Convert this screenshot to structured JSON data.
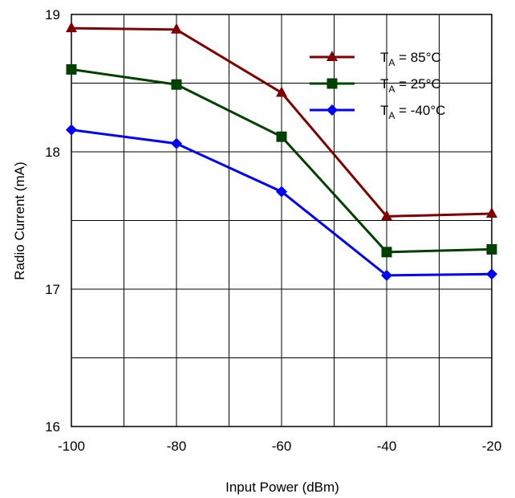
{
  "chart_data": {
    "type": "line",
    "title": "",
    "xlabel": "Input Power (dBm)",
    "ylabel": "Radio Current (mA)",
    "x": [
      -100,
      -80,
      -60,
      -40,
      -20
    ],
    "xlim": [
      -100,
      -20
    ],
    "ylim": [
      16,
      19
    ],
    "x_ticks": [
      "-100",
      "-80",
      "-60",
      "-40",
      "-20"
    ],
    "y_ticks": [
      "16",
      "17",
      "18",
      "19"
    ],
    "grid": true,
    "legend_position": "top-right",
    "series": [
      {
        "name_base": "T",
        "name_sub": "A",
        "name_rest": " = 85°C",
        "color": "#800000",
        "marker": "triangle",
        "values": [
          18.9,
          18.89,
          18.43,
          17.53,
          17.55
        ]
      },
      {
        "name_base": "T",
        "name_sub": "A",
        "name_rest": " = 25°C",
        "color": "#004000",
        "marker": "square",
        "values": [
          18.6,
          18.49,
          18.11,
          17.27,
          17.29
        ]
      },
      {
        "name_base": "T",
        "name_sub": "A",
        "name_rest": " = -40°C",
        "color": "#0000ff",
        "marker": "diamond",
        "values": [
          18.16,
          18.06,
          17.71,
          17.1,
          17.11
        ]
      }
    ]
  }
}
